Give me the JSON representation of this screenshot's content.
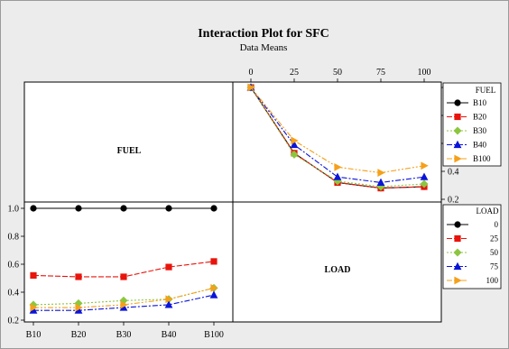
{
  "chart_data": {
    "type": "line",
    "title": "Interaction Plot for SFC",
    "subtitle": "Data Means",
    "factors": [
      "FUEL",
      "LOAD"
    ],
    "ylim": [
      0.2,
      1.0
    ],
    "yticks": [
      "0.2",
      "0.4",
      "0.6",
      "0.8",
      "1.0"
    ],
    "colors": [
      "#000000",
      "#e8140c",
      "#8cc63f",
      "#0a14d8",
      "#f5a01a"
    ],
    "markers": [
      "circle",
      "square",
      "diamond",
      "triangle",
      "triangle-right"
    ],
    "dashes": [
      "",
      "6,2",
      "2,2",
      "6,2,2,2",
      "6,2,2,2,2,2"
    ],
    "fuel_panel": {
      "x_factor": "LOAD",
      "categories": [
        "0",
        "25",
        "50",
        "75",
        "100"
      ],
      "legend_title": "FUEL",
      "series": [
        {
          "name": "B10",
          "values": [
            1.0,
            0.53,
            0.32,
            0.28,
            0.29
          ]
        },
        {
          "name": "B20",
          "values": [
            1.0,
            0.53,
            0.32,
            0.28,
            0.29
          ]
        },
        {
          "name": "B30",
          "values": [
            1.0,
            0.52,
            0.33,
            0.29,
            0.31
          ]
        },
        {
          "name": "B40",
          "values": [
            1.0,
            0.59,
            0.36,
            0.32,
            0.36
          ]
        },
        {
          "name": "B100",
          "values": [
            1.0,
            0.62,
            0.43,
            0.39,
            0.44
          ]
        }
      ]
    },
    "load_panel": {
      "x_factor": "FUEL",
      "categories": [
        "B10",
        "B20",
        "B30",
        "B40",
        "B100"
      ],
      "legend_title": "LOAD",
      "series": [
        {
          "name": "0",
          "values": [
            1.0,
            1.0,
            1.0,
            1.0,
            1.0
          ]
        },
        {
          "name": "25",
          "values": [
            0.52,
            0.51,
            0.51,
            0.58,
            0.62
          ]
        },
        {
          "name": "50",
          "values": [
            0.31,
            0.32,
            0.34,
            0.35,
            0.43
          ]
        },
        {
          "name": "75",
          "values": [
            0.27,
            0.27,
            0.29,
            0.31,
            0.38
          ]
        },
        {
          "name": "100",
          "values": [
            0.29,
            0.29,
            0.31,
            0.35,
            0.43
          ]
        }
      ]
    }
  }
}
